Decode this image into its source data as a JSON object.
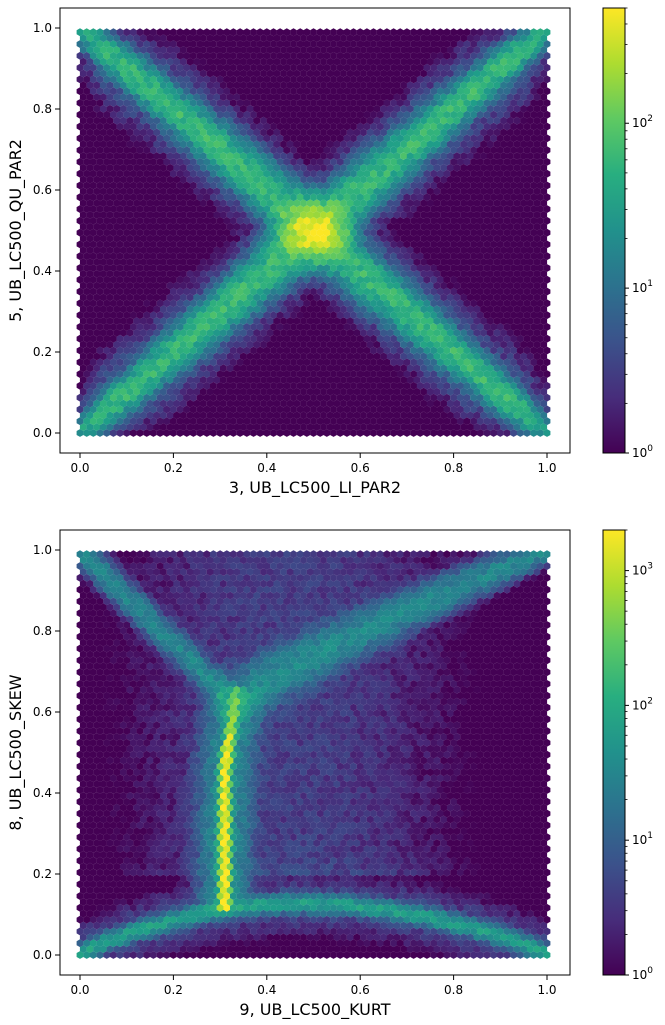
{
  "chart_data": [
    {
      "type": "heatmap",
      "subtype": "hexbin",
      "xlabel": "3, UB_LC500_LI_PAR2",
      "ylabel": "5, UB_LC500_QU_PAR2",
      "xlim": [
        0.0,
        1.0
      ],
      "ylim": [
        0.0,
        1.0
      ],
      "xticks": [
        "0.0",
        "0.2",
        "0.4",
        "0.6",
        "0.8",
        "1.0"
      ],
      "yticks": [
        "0.0",
        "0.2",
        "0.4",
        "0.6",
        "0.8",
        "1.0"
      ],
      "grid": false,
      "colormap": "viridis",
      "color_scale": "log",
      "colorbar_range": [
        1,
        500
      ],
      "colorbar_ticks": [
        {
          "value": 1,
          "base": "10",
          "exp": "0"
        },
        {
          "value": 10,
          "base": "10",
          "exp": "1"
        },
        {
          "value": 100,
          "base": "10",
          "exp": "2"
        }
      ],
      "background_count": 1,
      "pattern": "X-shaped density along both diagonals with a bright peak at (0.5, 0.5)",
      "features": [
        {
          "kind": "diagonal",
          "from": [
            0.0,
            0.0
          ],
          "to": [
            1.0,
            1.0
          ],
          "peak_count": 60
        },
        {
          "kind": "diagonal",
          "from": [
            0.0,
            1.0
          ],
          "to": [
            1.0,
            0.0
          ],
          "peak_count": 60
        },
        {
          "kind": "peak",
          "center": [
            0.5,
            0.5
          ],
          "peak_count": 450
        }
      ]
    },
    {
      "type": "heatmap",
      "subtype": "hexbin",
      "xlabel": "9, UB_LC500_KURT",
      "ylabel": "8, UB_LC500_SKEW",
      "xlim": [
        0.0,
        1.0
      ],
      "ylim": [
        0.0,
        1.0
      ],
      "xticks": [
        "0.0",
        "0.2",
        "0.4",
        "0.6",
        "0.8",
        "1.0"
      ],
      "yticks": [
        "0.0",
        "0.2",
        "0.4",
        "0.6",
        "0.8",
        "1.0"
      ],
      "grid": false,
      "colormap": "viridis",
      "color_scale": "log",
      "colorbar_range": [
        1,
        2000
      ],
      "colorbar_ticks": [
        {
          "value": 1,
          "base": "10",
          "exp": "0"
        },
        {
          "value": 10,
          "base": "10",
          "exp": "1"
        },
        {
          "value": 100,
          "base": "10",
          "exp": "2"
        },
        {
          "value": 1000,
          "base": "10",
          "exp": "3"
        }
      ],
      "background_count": 1,
      "pattern": "Y-shaped density: upper arms from (0,1) and (1,1) meeting near (0.33, 0.6), a narrow vertical spine at x≈0.31 down to y≈0.12, and a bottom arc from (0,0) to (1,0)",
      "features": [
        {
          "kind": "arm",
          "from": [
            0.0,
            1.0
          ],
          "to": [
            0.33,
            0.62
          ],
          "peak_count": 40
        },
        {
          "kind": "arm",
          "from": [
            1.0,
            1.0
          ],
          "to": [
            0.33,
            0.62
          ],
          "peak_count": 40
        },
        {
          "kind": "spine",
          "x": 0.31,
          "y_range": [
            0.12,
            0.62
          ],
          "peak_count": 2000
        },
        {
          "kind": "arc",
          "from": [
            0.0,
            0.0
          ],
          "to": [
            1.0,
            0.0
          ],
          "apex_y": 0.12,
          "peak_count": 80
        }
      ]
    }
  ]
}
